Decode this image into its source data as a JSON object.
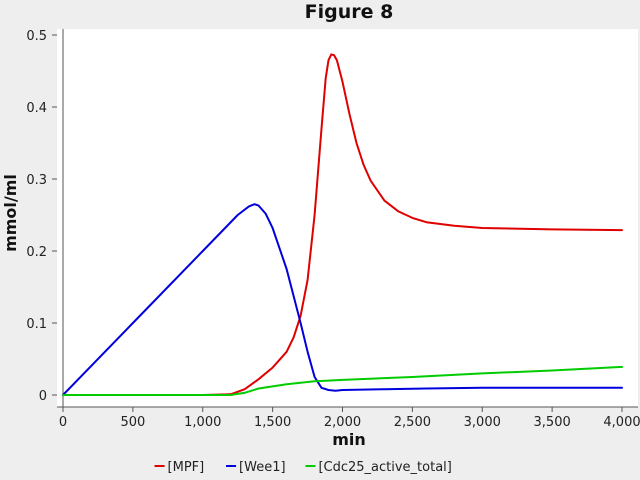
{
  "chart_data": {
    "type": "line",
    "title": "Figure 8",
    "xlabel": "min",
    "ylabel": "mmol/ml",
    "xlim": [
      0,
      4000
    ],
    "ylim": [
      0,
      0.5
    ],
    "x_ticks": [
      0,
      500,
      1000,
      1500,
      2000,
      2500,
      3000,
      3500,
      4000
    ],
    "x_tick_labels": [
      "0",
      "500",
      "1,000",
      "1,500",
      "2,000",
      "2,500",
      "3,000",
      "3,500",
      "4,000"
    ],
    "y_ticks": [
      0,
      0.1,
      0.2,
      0.3,
      0.4,
      0.5
    ],
    "y_tick_labels": [
      "0",
      "0.1",
      "0.2",
      "0.3",
      "0.4",
      "0.5"
    ],
    "grid": false,
    "legend_position": "bottom",
    "series": [
      {
        "name": "[MPF]",
        "color": "#e00000",
        "x": [
          0,
          1000,
          1200,
          1300,
          1400,
          1500,
          1600,
          1650,
          1700,
          1750,
          1800,
          1850,
          1880,
          1900,
          1920,
          1940,
          1960,
          1980,
          2000,
          2050,
          2100,
          2150,
          2200,
          2300,
          2400,
          2500,
          2600,
          2800,
          3000,
          3500,
          4000
        ],
        "y": [
          0,
          0,
          0.001,
          0.008,
          0.022,
          0.038,
          0.06,
          0.08,
          0.11,
          0.16,
          0.25,
          0.37,
          0.44,
          0.465,
          0.473,
          0.472,
          0.465,
          0.45,
          0.435,
          0.39,
          0.35,
          0.32,
          0.298,
          0.27,
          0.255,
          0.246,
          0.24,
          0.235,
          0.232,
          0.23,
          0.229
        ]
      },
      {
        "name": "[Wee1]",
        "color": "#0000dd",
        "x": [
          0,
          500,
          1000,
          1250,
          1330,
          1370,
          1400,
          1450,
          1500,
          1600,
          1700,
          1750,
          1800,
          1850,
          1900,
          1950,
          2000,
          2300,
          2600,
          3000,
          4000
        ],
        "y": [
          0,
          0.1,
          0.2,
          0.25,
          0.262,
          0.265,
          0.263,
          0.252,
          0.232,
          0.175,
          0.1,
          0.06,
          0.025,
          0.01,
          0.007,
          0.006,
          0.007,
          0.008,
          0.009,
          0.01,
          0.01
        ]
      },
      {
        "name": "[Cdc25_active_total]",
        "color": "#00cc00",
        "x": [
          0,
          1000,
          1200,
          1300,
          1400,
          1500,
          1600,
          1700,
          1800,
          1900,
          2000,
          2500,
          3000,
          3500,
          4000
        ],
        "y": [
          0,
          0,
          0,
          0.003,
          0.009,
          0.012,
          0.015,
          0.017,
          0.019,
          0.02,
          0.021,
          0.025,
          0.03,
          0.034,
          0.039
        ]
      }
    ]
  }
}
